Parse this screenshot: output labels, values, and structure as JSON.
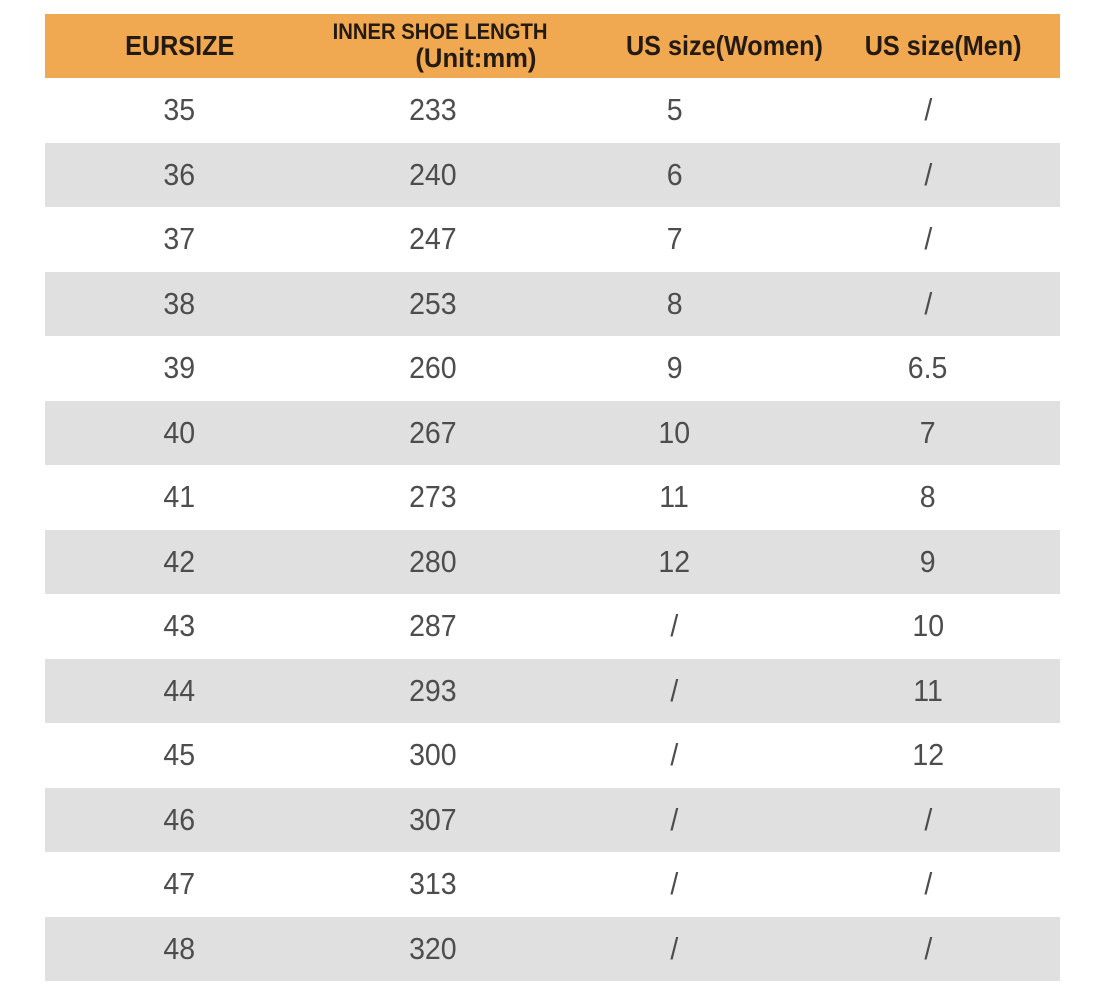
{
  "header": {
    "col1": "EURSIZE",
    "col2_line1": "INNER SHOE LENGTH",
    "col2_line2": "(Unit:mm)",
    "col3": "US size(Women)",
    "col4": "US size(Men)"
  },
  "colors": {
    "header_bg": "#F0A851",
    "header_text": "#231A12",
    "row_alt_bg": "#E0E0E0",
    "row_bg": "#FFFFFF",
    "data_text": "#4D4D4D"
  },
  "column_keys": [
    "eu-size",
    "inner-length-mm",
    "us-size-women",
    "us-size-men"
  ],
  "chart_data": {
    "type": "table",
    "columns": [
      "EURSIZE",
      "INNER SHOE LENGTH (Unit:mm)",
      "US size(Women)",
      "US size(Men)"
    ],
    "rows": [
      [
        "35",
        "233",
        "5",
        "/"
      ],
      [
        "36",
        "240",
        "6",
        "/"
      ],
      [
        "37",
        "247",
        "7",
        "/"
      ],
      [
        "38",
        "253",
        "8",
        "/"
      ],
      [
        "39",
        "260",
        "9",
        "6.5"
      ],
      [
        "40",
        "267",
        "10",
        "7"
      ],
      [
        "41",
        "273",
        "11",
        "8"
      ],
      [
        "42",
        "280",
        "12",
        "9"
      ],
      [
        "43",
        "287",
        "/",
        "10"
      ],
      [
        "44",
        "293",
        "/",
        "11"
      ],
      [
        "45",
        "300",
        "/",
        "12"
      ],
      [
        "46",
        "307",
        "/",
        "/"
      ],
      [
        "47",
        "313",
        "/",
        "/"
      ],
      [
        "48",
        "320",
        "/",
        "/"
      ]
    ],
    "layout": {
      "striped": true,
      "stripe_pattern": "odd rows white, even rows light gray",
      "header_background": "#F0A851",
      "gridlines": false
    }
  }
}
